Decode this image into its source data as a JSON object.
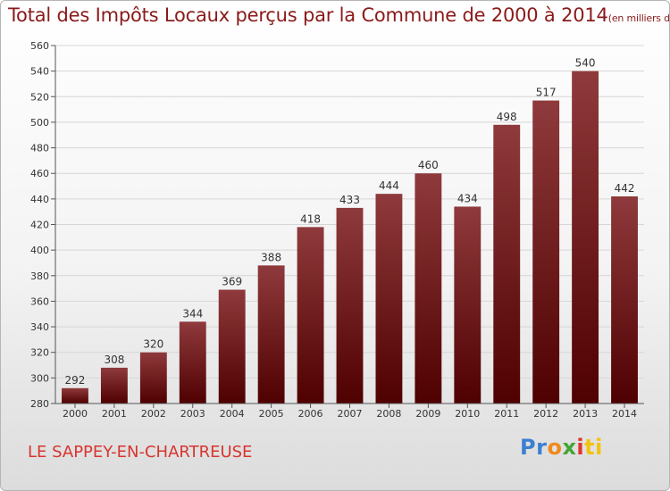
{
  "header": {
    "title": "Total des Impôts Locaux perçus par la Commune de 2000 à 2014",
    "unit": "(en milliers d'€)"
  },
  "footer": {
    "commune": "LE SAPPEY-EN-CHARTREUSE",
    "logo_parts": [
      "Pr",
      "o",
      "x",
      "i",
      "ti"
    ]
  },
  "colors": {
    "bar_top": "#8f3a3c",
    "bar_bottom": "#4f0000",
    "title": "#8a1a1a",
    "commune": "#d8352f"
  },
  "chart_data": {
    "type": "bar",
    "title": "Total des Impôts Locaux perçus par la Commune de 2000 à 2014",
    "categories": [
      "2000",
      "2001",
      "2002",
      "2003",
      "2004",
      "2005",
      "2006",
      "2007",
      "2008",
      "2009",
      "2010",
      "2011",
      "2012",
      "2013",
      "2014"
    ],
    "values": [
      292,
      308,
      320,
      344,
      369,
      388,
      418,
      433,
      444,
      460,
      434,
      498,
      517,
      540,
      442
    ],
    "data_labels": [
      "292",
      "308",
      "320",
      "344",
      "369",
      "388",
      "418",
      "433",
      "444",
      "460",
      "434",
      "498",
      "517",
      "540",
      "442"
    ],
    "ylim": [
      280,
      560
    ],
    "yticks": [
      280,
      300,
      320,
      340,
      360,
      380,
      400,
      420,
      440,
      460,
      480,
      500,
      520,
      540,
      560
    ],
    "grid": true,
    "xlabel": "",
    "ylabel": ""
  }
}
